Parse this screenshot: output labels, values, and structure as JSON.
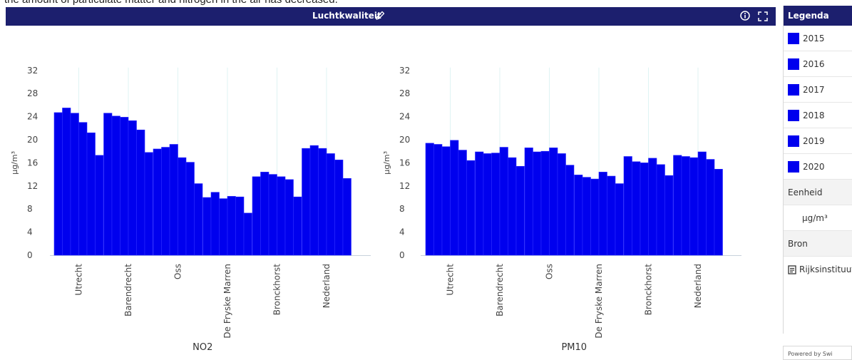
{
  "caption": "the amount of particulate matter and nitrogen in the air has decreased.",
  "header": {
    "title": "Luchtkwaliteit",
    "edit_icon": "pencil-icon",
    "info_icon": "info-icon",
    "fullscreen_icon": "fullscreen-icon",
    "color": "#1c1f6e"
  },
  "legend": {
    "title": "Legenda",
    "items": [
      "2015",
      "2016",
      "2017",
      "2018",
      "2019",
      "2020"
    ],
    "color": "#0000ee",
    "unit_label": "Eenheid",
    "unit_value": "µg/m³",
    "source_label": "Bron",
    "source_value": "Rijksinstituut",
    "source_icon": "document-icon"
  },
  "footer": {
    "powered_by": "Powered by Swi"
  },
  "chart_data": [
    {
      "type": "bar",
      "xlabel": "NO2",
      "ylabel": "µg/m³",
      "ylim": [
        0,
        32
      ],
      "yticks": [
        0,
        4,
        8,
        12,
        16,
        20,
        24,
        28,
        32
      ],
      "grid": "vertical",
      "categories": [
        "Utrecht",
        "Barendrecht",
        "Oss",
        "De Fryske Marren",
        "Bronckhorst",
        "Nederland"
      ],
      "series": [
        {
          "name": "2015",
          "values": [
            24.7,
            24.6,
            18.4,
            10.0,
            13.6,
            18.5
          ]
        },
        {
          "name": "2016",
          "values": [
            25.5,
            24.1,
            18.7,
            10.9,
            14.4,
            19.0
          ]
        },
        {
          "name": "2017",
          "values": [
            24.6,
            23.9,
            19.2,
            9.8,
            14.0,
            18.5
          ]
        },
        {
          "name": "2018",
          "values": [
            23.0,
            23.3,
            16.9,
            10.2,
            13.6,
            17.6
          ]
        },
        {
          "name": "2019",
          "values": [
            21.2,
            21.7,
            16.1,
            10.1,
            13.1,
            16.5
          ]
        },
        {
          "name": "2020",
          "values": [
            17.3,
            17.8,
            12.4,
            7.3,
            10.1,
            13.3
          ]
        }
      ]
    },
    {
      "type": "bar",
      "xlabel": "PM10",
      "ylabel": "µg/m³",
      "ylim": [
        0,
        32
      ],
      "yticks": [
        0,
        4,
        8,
        12,
        16,
        20,
        24,
        28,
        32
      ],
      "grid": "vertical",
      "categories": [
        "Utrecht",
        "Barendrecht",
        "Oss",
        "De Fryske Marren",
        "Bronckhorst",
        "Nederland"
      ],
      "series": [
        {
          "name": "2015",
          "values": [
            19.4,
            17.9,
            18.6,
            13.9,
            17.1,
            17.3
          ]
        },
        {
          "name": "2016",
          "values": [
            19.2,
            17.6,
            17.9,
            13.5,
            16.2,
            17.1
          ]
        },
        {
          "name": "2017",
          "values": [
            18.8,
            17.7,
            18.0,
            13.2,
            16.0,
            16.9
          ]
        },
        {
          "name": "2018",
          "values": [
            19.9,
            18.7,
            18.6,
            14.4,
            16.8,
            17.9
          ]
        },
        {
          "name": "2019",
          "values": [
            18.2,
            16.9,
            17.6,
            13.7,
            15.7,
            16.6
          ]
        },
        {
          "name": "2020",
          "values": [
            16.4,
            15.4,
            15.6,
            12.4,
            13.8,
            14.9
          ]
        }
      ]
    }
  ]
}
